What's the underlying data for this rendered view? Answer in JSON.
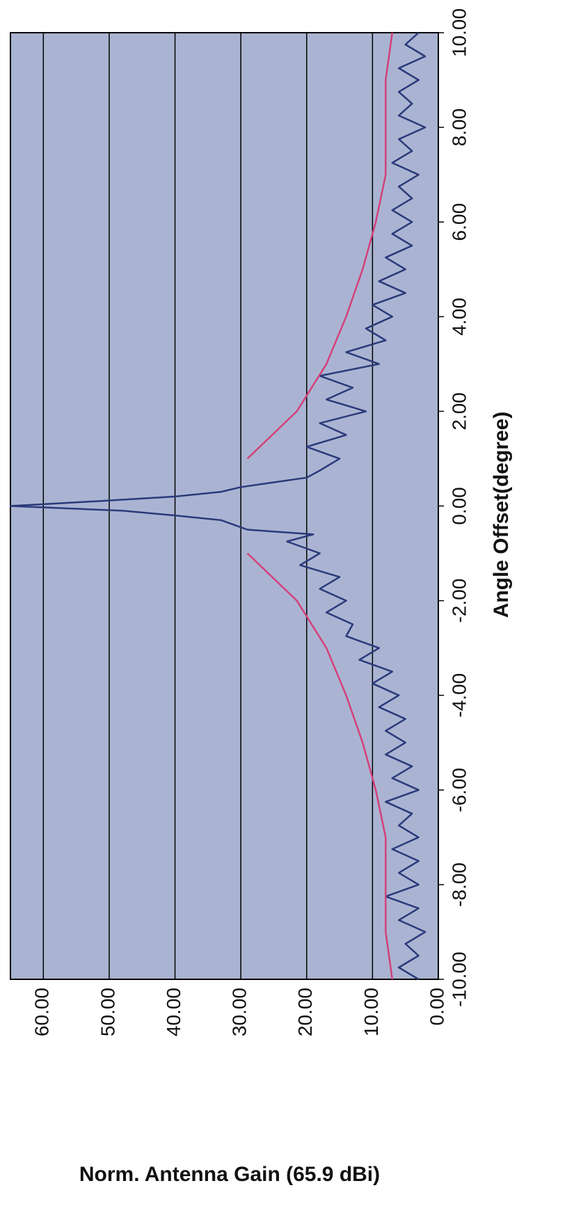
{
  "chart_data": {
    "type": "line",
    "xlabel": "Angle Offset(degree)",
    "ylabel": "Norm. Antenna Gain (65.9 dBi)",
    "xlim": [
      -10,
      10
    ],
    "ylim": [
      0,
      65
    ],
    "xticks": [
      {
        "value": -10,
        "label": "-10.00"
      },
      {
        "value": -8,
        "label": "-8.00"
      },
      {
        "value": -6,
        "label": "-6.00"
      },
      {
        "value": -4,
        "label": "-4.00"
      },
      {
        "value": -2,
        "label": "-2.00"
      },
      {
        "value": 0,
        "label": "0.00"
      },
      {
        "value": 2,
        "label": "2.00"
      },
      {
        "value": 4,
        "label": "4.00"
      },
      {
        "value": 6,
        "label": "6.00"
      },
      {
        "value": 8,
        "label": "8.00"
      },
      {
        "value": 10,
        "label": "10.00"
      }
    ],
    "yticks": [
      {
        "value": 0,
        "label": "0.00"
      },
      {
        "value": 10,
        "label": "10.00"
      },
      {
        "value": 20,
        "label": "20.00"
      },
      {
        "value": 30,
        "label": "30.00"
      },
      {
        "value": 40,
        "label": "40.00"
      },
      {
        "value": 50,
        "label": "50.00"
      },
      {
        "value": 60,
        "label": "60.00"
      }
    ],
    "grid": true,
    "background": "#aab4d2",
    "series": [
      {
        "color": "#2a3a7a",
        "x": [
          -10,
          -9.75,
          -9.5,
          -9.25,
          -9,
          -8.75,
          -8.5,
          -8.25,
          -8,
          -7.75,
          -7.5,
          -7.25,
          -7,
          -6.75,
          -6.5,
          -6.25,
          -6,
          -5.75,
          -5.5,
          -5.25,
          -5,
          -4.75,
          -4.5,
          -4.25,
          -4,
          -3.75,
          -3.5,
          -3.25,
          -3,
          -2.75,
          -2.5,
          -2.25,
          -2,
          -1.75,
          -1.5,
          -1.25,
          -1,
          -0.75,
          -0.6,
          -0.5,
          -0.4,
          -0.3,
          -0.2,
          -0.1,
          0,
          0.1,
          0.2,
          0.3,
          0.4,
          0.5,
          0.6,
          0.75,
          1,
          1.25,
          1.5,
          1.75,
          2,
          2.25,
          2.5,
          2.75,
          3,
          3.25,
          3.5,
          3.75,
          4,
          4.25,
          4.5,
          4.75,
          5,
          5.25,
          5.5,
          5.75,
          6,
          6.25,
          6.5,
          6.75,
          7,
          7.25,
          7.5,
          7.75,
          8,
          8.25,
          8.5,
          8.75,
          9,
          9.25,
          9.5,
          9.75,
          10
        ],
        "values": [
          3,
          6,
          3,
          5,
          2,
          6,
          3,
          8,
          3,
          6,
          3,
          7,
          3,
          6,
          4,
          8,
          3,
          7,
          4,
          8,
          5,
          8,
          5,
          9,
          6,
          10,
          7,
          12,
          9,
          14,
          13,
          17,
          14,
          18,
          15,
          21,
          18,
          23,
          19,
          29,
          31,
          33,
          40,
          48,
          65,
          52,
          40,
          33,
          30,
          25,
          20,
          18,
          15,
          20,
          14,
          18,
          11,
          17,
          13,
          18,
          9,
          14,
          8,
          11,
          7,
          10,
          5,
          9,
          5,
          8,
          4,
          7,
          4,
          7,
          4,
          6,
          3,
          7,
          4,
          6,
          2,
          6,
          4,
          6,
          3,
          6,
          2,
          5,
          3
        ]
      },
      {
        "color": "#d4407a",
        "x": [
          -10,
          -9,
          -8,
          -7,
          -6,
          -5,
          -4,
          -3,
          -2,
          -1,
          0,
          1,
          2,
          3,
          4,
          5,
          6,
          7,
          8,
          9,
          10
        ],
        "values": [
          7,
          8,
          8,
          8,
          9.5,
          11.5,
          14,
          17,
          21.5,
          29,
          null,
          29,
          21.5,
          17,
          14,
          11.5,
          9.5,
          8,
          8,
          8,
          7
        ]
      }
    ]
  }
}
